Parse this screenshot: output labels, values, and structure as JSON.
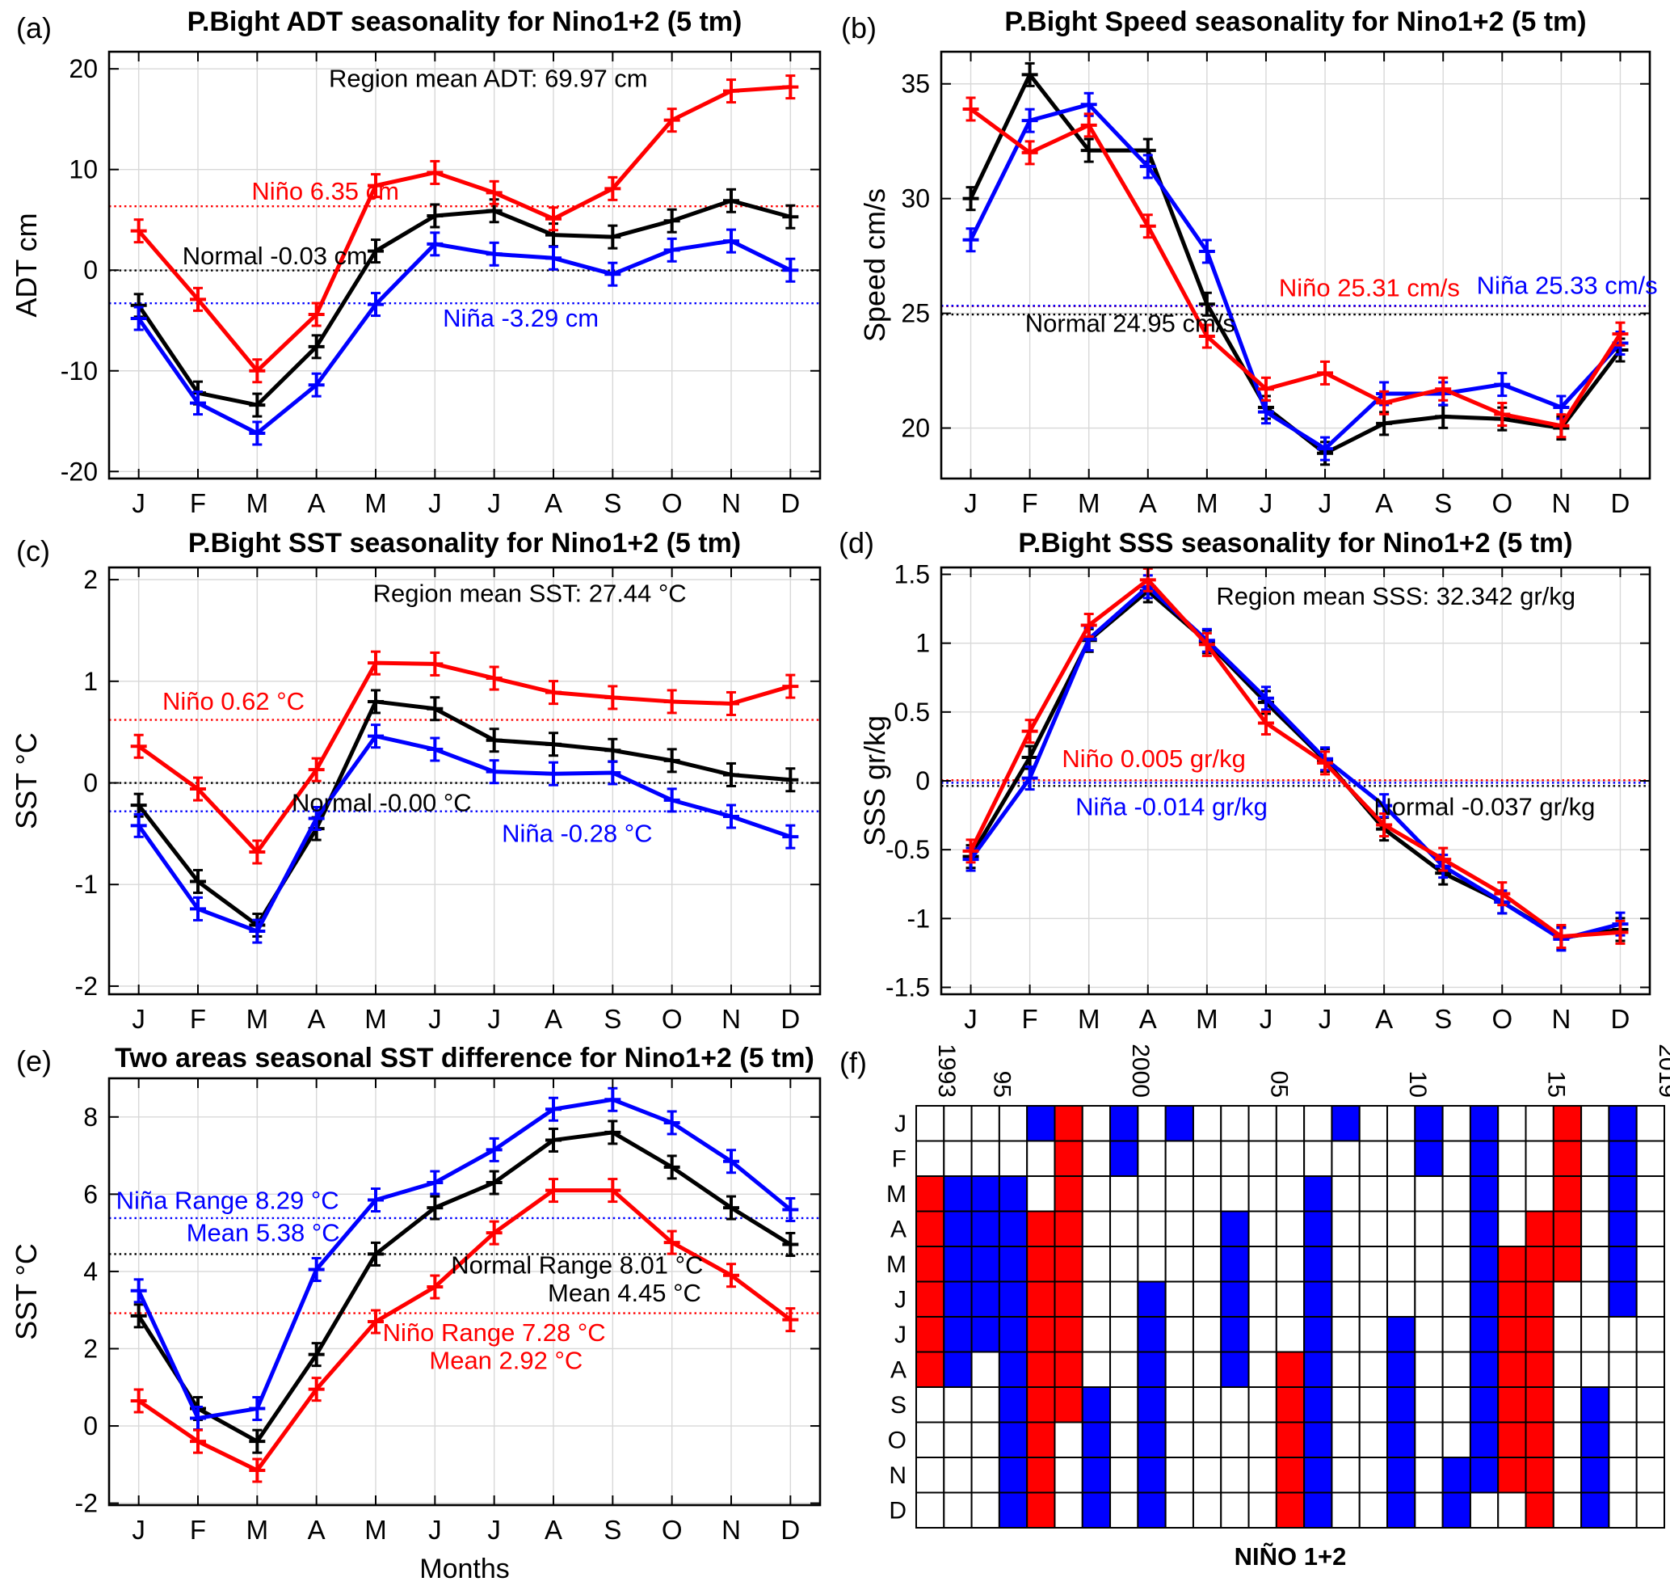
{
  "chart_data": [
    {
      "id": "a",
      "type": "line",
      "label": "(a)",
      "title": "P.Bight ADT seasonality for Nino1+2 (5 tm)",
      "ylabel": "ADT cm",
      "xlabel": "",
      "months": [
        "J",
        "F",
        "M",
        "A",
        "M",
        "J",
        "J",
        "A",
        "S",
        "O",
        "N",
        "D"
      ],
      "yticks": [
        20,
        10,
        0,
        -10,
        -20
      ],
      "ylim": [
        -20.7,
        21.7
      ],
      "grid": true,
      "series": [
        {
          "name": "Niño",
          "color": "#ff0000",
          "values": [
            3.9,
            -2.9,
            -10.0,
            -4.4,
            8.4,
            9.7,
            7.7,
            5.1,
            8.1,
            14.9,
            17.8,
            18.2
          ]
        },
        {
          "name": "Normal",
          "color": "#000000",
          "values": [
            -3.5,
            -12.2,
            -13.4,
            -7.6,
            1.9,
            5.4,
            5.9,
            3.5,
            3.3,
            4.9,
            6.9,
            5.3
          ]
        },
        {
          "name": "Niña",
          "color": "#0000ff",
          "values": [
            -4.8,
            -13.2,
            -16.2,
            -11.4,
            -3.4,
            2.6,
            1.6,
            1.2,
            -0.4,
            2.0,
            2.9,
            0.0
          ]
        }
      ],
      "ref_lines": [
        {
          "value": 6.35,
          "color": "#ff0000"
        },
        {
          "value": -0.03,
          "color": "#000000"
        },
        {
          "value": -3.29,
          "color": "#0000ff"
        }
      ],
      "annotations": [
        {
          "text": "Region mean ADT: 69.97 cm",
          "x": 6.9,
          "y": 18.2,
          "color": "#000000",
          "anchor": "middle"
        },
        {
          "text": "Niño 6.35 cm",
          "x": 4.15,
          "y": 7.0,
          "color": "#ff0000",
          "anchor": "middle"
        },
        {
          "text": "Normal -0.03 cm",
          "x": 3.3,
          "y": 0.6,
          "color": "#000000",
          "anchor": "middle"
        },
        {
          "text": "Niña -3.29 cm",
          "x": 7.45,
          "y": -5.6,
          "color": "#0000ff",
          "anchor": "middle"
        }
      ]
    },
    {
      "id": "b",
      "type": "line",
      "label": "(b)",
      "title": "P.Bight Speed seasonality for Nino1+2 (5 tm)",
      "ylabel": "Speed cm/s",
      "xlabel": "",
      "months": [
        "J",
        "F",
        "M",
        "A",
        "M",
        "J",
        "J",
        "A",
        "S",
        "O",
        "N",
        "D"
      ],
      "yticks": [
        35,
        30,
        25,
        20
      ],
      "ylim": [
        17.8,
        36.4
      ],
      "grid": true,
      "series": [
        {
          "name": "Niño",
          "color": "#ff0000",
          "values": [
            33.9,
            32.0,
            33.2,
            28.8,
            24.0,
            21.7,
            22.4,
            21.1,
            21.7,
            20.6,
            20.1,
            24.1
          ]
        },
        {
          "name": "Normal",
          "color": "#000000",
          "values": [
            30.0,
            35.4,
            32.1,
            32.1,
            25.4,
            20.9,
            18.9,
            20.2,
            20.5,
            20.4,
            20.0,
            23.4
          ]
        },
        {
          "name": "Niña",
          "color": "#0000ff",
          "values": [
            28.2,
            33.4,
            34.1,
            31.4,
            27.7,
            20.7,
            19.1,
            21.5,
            21.5,
            21.9,
            20.9,
            23.7
          ]
        }
      ],
      "ref_lines": [
        {
          "value": 25.31,
          "color": "#ff0000"
        },
        {
          "value": 25.33,
          "color": "#0000ff"
        },
        {
          "value": 24.95,
          "color": "#000000"
        }
      ],
      "annotations": [
        {
          "text": "Niño 25.31 cm/s",
          "x": 7.75,
          "y": 25.75,
          "color": "#ff0000",
          "anchor": "middle"
        },
        {
          "text": "Niña 25.33 cm/s",
          "x": 11.1,
          "y": 25.85,
          "color": "#0000ff",
          "anchor": "middle"
        },
        {
          "text": "Normal 24.95 cm/s",
          "x": 3.7,
          "y": 24.2,
          "color": "#000000",
          "anchor": "middle"
        }
      ]
    },
    {
      "id": "c",
      "type": "line",
      "label": "(c)",
      "title": "P.Bight SST seasonality for Nino1+2 (5 tm)",
      "ylabel": "SST °C",
      "xlabel": "",
      "months": [
        "J",
        "F",
        "M",
        "A",
        "M",
        "J",
        "J",
        "A",
        "S",
        "O",
        "N",
        "D"
      ],
      "yticks": [
        2,
        1,
        0,
        -1,
        -2
      ],
      "ylim": [
        -2.08,
        2.12
      ],
      "grid": true,
      "series": [
        {
          "name": "Niño",
          "color": "#ff0000",
          "values": [
            0.36,
            -0.06,
            -0.68,
            0.13,
            1.18,
            1.17,
            1.03,
            0.89,
            0.84,
            0.8,
            0.78,
            0.95
          ]
        },
        {
          "name": "Normal",
          "color": "#000000",
          "values": [
            -0.22,
            -0.97,
            -1.4,
            -0.45,
            0.8,
            0.73,
            0.42,
            0.38,
            0.32,
            0.22,
            0.08,
            0.03
          ]
        },
        {
          "name": "Niña",
          "color": "#0000ff",
          "values": [
            -0.42,
            -1.24,
            -1.46,
            -0.35,
            0.46,
            0.33,
            0.11,
            0.09,
            0.1,
            -0.17,
            -0.33,
            -0.53
          ]
        }
      ],
      "ref_lines": [
        {
          "value": 0.62,
          "color": "#ff0000"
        },
        {
          "value": 0.0,
          "color": "#000000"
        },
        {
          "value": -0.28,
          "color": "#0000ff"
        }
      ],
      "annotations": [
        {
          "text": "Region mean SST: 27.44 °C",
          "x": 7.6,
          "y": 1.78,
          "color": "#000000",
          "anchor": "middle"
        },
        {
          "text": "Niño 0.62 °C",
          "x": 2.6,
          "y": 0.72,
          "color": "#ff0000",
          "anchor": "middle"
        },
        {
          "text": "Normal -0.00 °C",
          "x": 5.1,
          "y": -0.28,
          "color": "#000000",
          "anchor": "middle"
        },
        {
          "text": "Niña -0.28 °C",
          "x": 8.4,
          "y": -0.58,
          "color": "#0000ff",
          "anchor": "middle"
        }
      ]
    },
    {
      "id": "d",
      "type": "line",
      "label": "(d)",
      "title": "P.Bight SSS seasonality for Nino1+2 (5 tm)",
      "ylabel": "SSS gr/kg",
      "xlabel": "",
      "months": [
        "J",
        "F",
        "M",
        "A",
        "M",
        "J",
        "J",
        "A",
        "S",
        "O",
        "N",
        "D"
      ],
      "yticks": [
        1.5,
        1,
        0.5,
        0,
        -0.5,
        -1,
        -1.5
      ],
      "ylim": [
        -1.55,
        1.55
      ],
      "grid": true,
      "series": [
        {
          "name": "Niño",
          "color": "#ff0000",
          "values": [
            -0.51,
            0.36,
            1.13,
            1.46,
            0.99,
            0.42,
            0.13,
            -0.32,
            -0.57,
            -0.82,
            -1.13,
            -1.1
          ]
        },
        {
          "name": "Normal",
          "color": "#000000",
          "values": [
            -0.55,
            0.17,
            1.02,
            1.38,
            1.01,
            0.57,
            0.15,
            -0.35,
            -0.67,
            -0.88,
            -1.14,
            -1.08
          ]
        },
        {
          "name": "Niña",
          "color": "#0000ff",
          "values": [
            -0.57,
            0.02,
            1.03,
            1.41,
            1.02,
            0.6,
            0.16,
            -0.18,
            -0.62,
            -0.88,
            -1.15,
            -1.04
          ]
        }
      ],
      "ref_lines": [
        {
          "value": 0.005,
          "color": "#ff0000"
        },
        {
          "value": -0.014,
          "color": "#0000ff"
        },
        {
          "value": -0.037,
          "color": "#000000"
        }
      ],
      "annotations": [
        {
          "text": "Region mean SSS: 32.342 gr/kg",
          "x": 8.2,
          "y": 1.28,
          "color": "#000000",
          "anchor": "middle"
        },
        {
          "text": "Niño 0.005 gr/kg",
          "x": 4.1,
          "y": 0.1,
          "color": "#ff0000",
          "anchor": "middle"
        },
        {
          "text": "Niña -0.014 gr/kg",
          "x": 4.4,
          "y": -0.25,
          "color": "#0000ff",
          "anchor": "middle"
        },
        {
          "text": "Normal -0.037 gr/kg",
          "x": 9.7,
          "y": -0.25,
          "color": "#000000",
          "anchor": "middle"
        }
      ]
    },
    {
      "id": "e",
      "type": "line",
      "label": "(e)",
      "title": "Two areas seasonal SST difference for Nino1+2 (5 tm)",
      "ylabel": "SST °C",
      "xlabel": "Months",
      "months": [
        "J",
        "F",
        "M",
        "A",
        "M",
        "J",
        "J",
        "A",
        "S",
        "O",
        "N",
        "D"
      ],
      "yticks": [
        8,
        6,
        4,
        2,
        0,
        -2
      ],
      "ylim": [
        -2.05,
        9.0
      ],
      "grid": true,
      "series": [
        {
          "name": "Niño",
          "color": "#ff0000",
          "values": [
            0.65,
            -0.4,
            -1.15,
            0.95,
            2.7,
            3.6,
            5.0,
            6.1,
            6.1,
            4.75,
            3.9,
            2.75
          ]
        },
        {
          "name": "Normal",
          "color": "#000000",
          "values": [
            2.85,
            0.45,
            -0.4,
            1.85,
            4.45,
            5.65,
            6.3,
            7.4,
            7.6,
            6.7,
            5.65,
            4.7
          ]
        },
        {
          "name": "Niña",
          "color": "#0000ff",
          "values": [
            3.5,
            0.2,
            0.45,
            4.05,
            5.85,
            6.3,
            7.15,
            8.2,
            8.45,
            7.85,
            6.85,
            5.6
          ]
        }
      ],
      "ref_lines": [
        {
          "value": 5.38,
          "color": "#0000ff"
        },
        {
          "value": 4.45,
          "color": "#000000"
        },
        {
          "value": 2.92,
          "color": "#ff0000"
        }
      ],
      "annotations": [
        {
          "text": "Niña Range 8.29 °C",
          "x": 2.5,
          "y": 5.62,
          "color": "#0000ff",
          "anchor": "middle"
        },
        {
          "text": "Mean 5.38 °C",
          "x": 3.1,
          "y": 4.78,
          "color": "#0000ff",
          "anchor": "middle"
        },
        {
          "text": "Normal Range 8.01 °C",
          "x": 8.4,
          "y": 3.95,
          "color": "#000000",
          "anchor": "middle"
        },
        {
          "text": "Mean 4.45 °C",
          "x": 9.2,
          "y": 3.22,
          "color": "#000000",
          "anchor": "middle"
        },
        {
          "text": "Niño Range 7.28 °C",
          "x": 7.0,
          "y": 2.2,
          "color": "#ff0000",
          "anchor": "middle"
        },
        {
          "text": "Mean 2.92 °C",
          "x": 7.2,
          "y": 1.48,
          "color": "#ff0000",
          "anchor": "middle"
        }
      ]
    },
    {
      "id": "f",
      "type": "heatmap",
      "label": "(f)",
      "caption": "NIÑO 1+2",
      "months": [
        "J",
        "F",
        "M",
        "A",
        "M",
        "J",
        "J",
        "A",
        "S",
        "O",
        "N",
        "D"
      ],
      "years": [
        1993,
        1994,
        1995,
        1996,
        1997,
        1998,
        1999,
        2000,
        2001,
        2002,
        2003,
        2004,
        2005,
        2006,
        2007,
        2008,
        2009,
        2010,
        2011,
        2012,
        2013,
        2014,
        2015,
        2016,
        2017,
        2018,
        2019
      ],
      "year_tick_labels": [
        {
          "text": "1993",
          "year": 1993
        },
        {
          "text": "95",
          "year": 1995
        },
        {
          "text": "2000",
          "year": 2000
        },
        {
          "text": "05",
          "year": 2005
        },
        {
          "text": "10",
          "year": 2010
        },
        {
          "text": "15",
          "year": 2015
        },
        {
          "text": "2019",
          "year": 2019
        }
      ],
      "cell_colors": {
        "R": "#ff0000",
        "B": "#0000ff",
        "W": "#ffffff"
      },
      "patterns": [
        "WWRRRRRRWWWW",
        "WWBBBBBBWWWW",
        "WWBBBBBWWWWW",
        "WWBBBBBBBBBB",
        "BWWRRRRRRRRR",
        "RRRRRRRRRWWW",
        "WWWWWWWWBBBB",
        "BBWWWWWWWWWW",
        "WWWWWBBBBBBB",
        "BWWWWWWWWWWW",
        "WWWWWWWWWWWW",
        "WWWBBBBBWWWW",
        "WWWWWWWWWWWW",
        "WWWWWWWRRRRR",
        "WWBBBBBBBBBB",
        "BWWWWWWWWWWW",
        "WWWWWWWWWWWW",
        "WWWWWWBBBBBB",
        "BBWWWWWWWWWW",
        "WWWWWWWWWWBB",
        "BBBBBBBBBBBW",
        "WWWWRRRRRRRW",
        "WWWRRRRRRRRR",
        "RRRRRWWWWWWW",
        "WWWWWWWWBBBB",
        "BBBBBBWWWWWW",
        "WWWWWWWWWWWW"
      ]
    }
  ]
}
